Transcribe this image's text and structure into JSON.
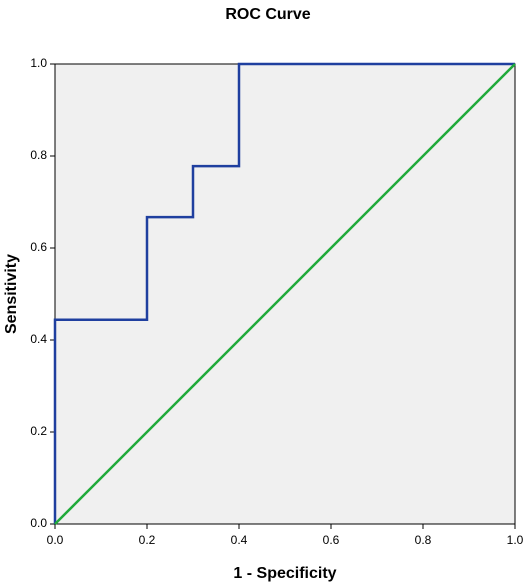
{
  "chart_data": {
    "type": "line",
    "title": "ROC Curve",
    "x_label": "1 - Specificity",
    "y_label": "Sensitivity",
    "series": [
      {
        "color": "#1f3f9f",
        "x": [
          0,
          0,
          0.2,
          0.2,
          0.3,
          0.3,
          0.4,
          0.4,
          1
        ],
        "values": [
          0,
          0.444,
          0.444,
          0.667,
          0.667,
          0.778,
          0.778,
          1,
          1
        ]
      },
      {
        "color": "#1faa3a",
        "x": [
          0,
          1
        ],
        "values": [
          0,
          1
        ]
      }
    ],
    "xlim": [
      0,
      1
    ],
    "ylim": [
      0,
      1
    ],
    "xticks": [
      {
        "value": 0,
        "label": "0.0"
      },
      {
        "value": 0.2,
        "label": "0.2"
      },
      {
        "value": 0.4,
        "label": "0.4"
      },
      {
        "value": 0.6,
        "label": "0.6"
      },
      {
        "value": 0.8,
        "label": "0.8"
      },
      {
        "value": 1,
        "label": "1.0"
      }
    ],
    "yticks": [
      {
        "value": 0,
        "label": "0.0"
      },
      {
        "value": 0.2,
        "label": "0.2"
      },
      {
        "value": 0.4,
        "label": "0.4"
      },
      {
        "value": 0.6,
        "label": "0.6"
      },
      {
        "value": 0.8,
        "label": "0.8"
      },
      {
        "value": 1,
        "label": "1.0"
      }
    ],
    "plot_background": "#f0f0f0"
  }
}
